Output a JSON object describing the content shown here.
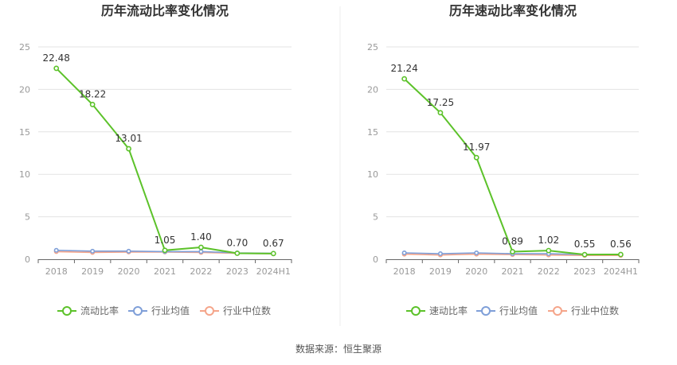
{
  "source_text": "数据来源：恒生聚源",
  "colors": {
    "main": "#5cc22a",
    "avg": "#7f9fd8",
    "median": "#f5a58a",
    "axis": "#999999",
    "grid": "#e3e3e3",
    "label": "#333333"
  },
  "chart_data": [
    {
      "type": "line",
      "title": "历年流动比率变化情况",
      "xlabel": "",
      "ylabel": "",
      "categories": [
        "2018",
        "2019",
        "2020",
        "2021",
        "2022",
        "2023",
        "2024H1"
      ],
      "ylim": [
        0,
        25
      ],
      "yticks": [
        0,
        5,
        10,
        15,
        20,
        25
      ],
      "grid": true,
      "legend_position": "bottom",
      "series": [
        {
          "name": "流动比率",
          "role": "main",
          "values": [
            22.48,
            18.22,
            13.01,
            1.05,
            1.4,
            0.7,
            0.67
          ],
          "labels": [
            "22.48",
            "18.22",
            "13.01",
            "1.05",
            "1.40",
            "0.70",
            "0.67"
          ]
        },
        {
          "name": "行业均值",
          "role": "avg",
          "values": [
            1.05,
            0.95,
            0.95,
            0.9,
            0.9,
            0.75,
            0.7
          ]
        },
        {
          "name": "行业中位数",
          "role": "median",
          "values": [
            0.9,
            0.8,
            0.85,
            0.85,
            0.8,
            0.7,
            0.65
          ]
        }
      ]
    },
    {
      "type": "line",
      "title": "历年速动比率变化情况",
      "xlabel": "",
      "ylabel": "",
      "categories": [
        "2018",
        "2019",
        "2020",
        "2021",
        "2022",
        "2023",
        "2024H1"
      ],
      "ylim": [
        0,
        25
      ],
      "yticks": [
        0,
        5,
        10,
        15,
        20,
        25
      ],
      "grid": true,
      "legend_position": "bottom",
      "series": [
        {
          "name": "速动比率",
          "role": "main",
          "values": [
            21.24,
            17.25,
            11.97,
            0.89,
            1.02,
            0.55,
            0.56
          ],
          "labels": [
            "21.24",
            "17.25",
            "11.97",
            "0.89",
            "1.02",
            "0.55",
            "0.56"
          ]
        },
        {
          "name": "行业均值",
          "role": "avg",
          "values": [
            0.75,
            0.65,
            0.75,
            0.65,
            0.65,
            0.55,
            0.55
          ]
        },
        {
          "name": "行业中位数",
          "role": "median",
          "values": [
            0.6,
            0.5,
            0.6,
            0.55,
            0.5,
            0.45,
            0.45
          ]
        }
      ]
    }
  ]
}
